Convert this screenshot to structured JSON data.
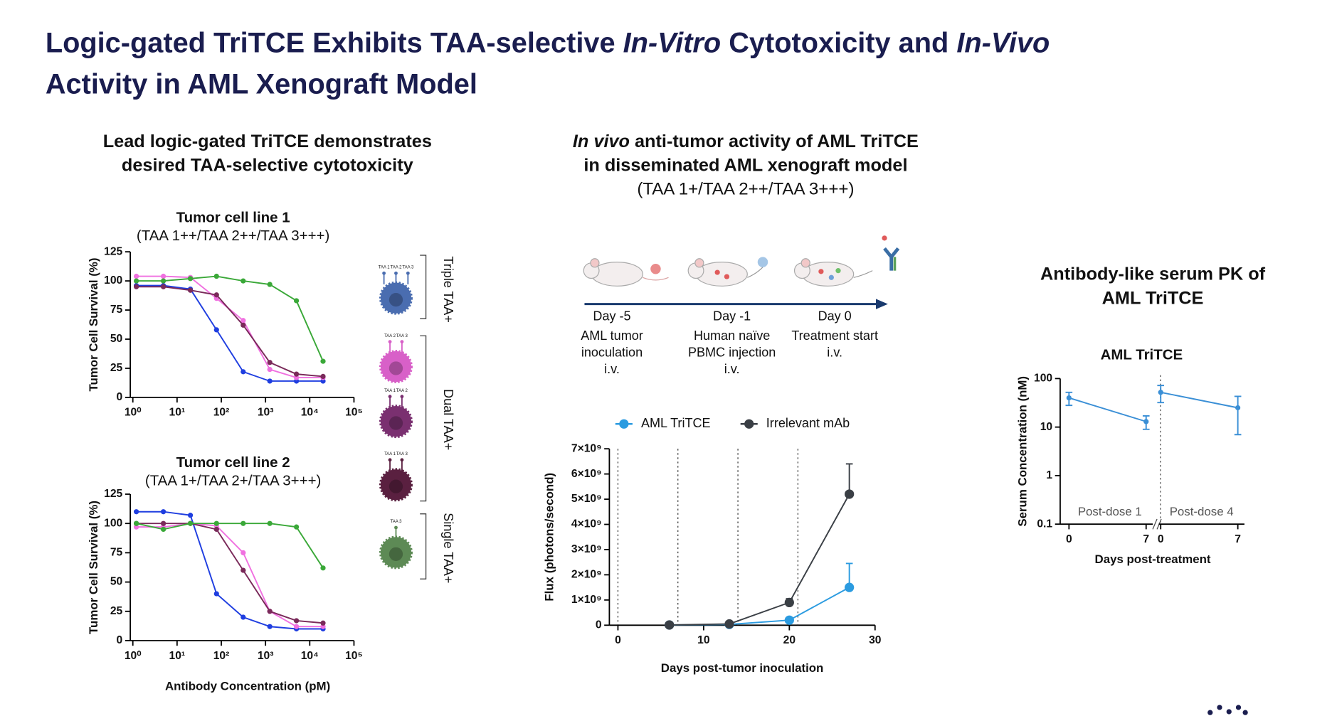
{
  "title": {
    "lines": [
      {
        "bold": true,
        "parts": [
          {
            "text": "Logic-gated TriTCE Exhibits TAA-selective ",
            "italic": false
          },
          {
            "text": "In-Vitro",
            "italic": true
          },
          {
            "text": " Cytotoxicity and ",
            "italic": false
          },
          {
            "text": "In-Vivo",
            "italic": true
          }
        ]
      },
      {
        "bold": true,
        "parts": [
          {
            "text": "Activity in AML Xenograft Model",
            "italic": false
          }
        ]
      }
    ]
  },
  "headings": [
    {
      "lines": [
        {
          "bold": true,
          "parts": [
            {
              "text": "Lead logic-gated TriTCE demonstrates",
              "italic": false
            }
          ]
        },
        {
          "bold": true,
          "parts": [
            {
              "text": "desired TAA-selective cytotoxicity",
              "italic": false
            }
          ]
        }
      ]
    },
    {
      "lines": [
        {
          "bold": true,
          "parts": [
            {
              "text": "In vivo",
              "italic": true
            },
            {
              "text": " anti-tumor activity of AML TriTCE",
              "italic": false
            }
          ]
        },
        {
          "bold": true,
          "parts": [
            {
              "text": "in disseminated AML xenograft model",
              "italic": false
            }
          ]
        },
        {
          "bold": false,
          "parts": [
            {
              "text": "(TAA 1+/TAA 2++/TAA 3+++)",
              "italic": false
            }
          ]
        }
      ]
    },
    {
      "lines": [
        {
          "bold": true,
          "parts": [
            {
              "text": "Antibody-like serum PK of",
              "italic": false
            }
          ]
        },
        {
          "bold": true,
          "parts": [
            {
              "text": "AML TriTCE",
              "italic": false
            }
          ]
        }
      ]
    }
  ],
  "cells": {
    "groups": [
      "Triple TAA+",
      "Dual TAA+",
      "Single TAA+"
    ],
    "cells": [
      {
        "color": "#4a6db0",
        "markers": [
          "TAA 1",
          "TAA 2",
          "TAA 3"
        ]
      },
      {
        "color": "#d860c8",
        "markers": [
          "TAA 2",
          "TAA 3"
        ]
      },
      {
        "color": "#7a3070",
        "markers": [
          "TAA 1",
          "TAA 2"
        ]
      },
      {
        "color": "#5a2040",
        "markers": [
          "TAA 1",
          "TAA 3"
        ]
      },
      {
        "color": "#5d8a55",
        "markers": [
          "TAA 3"
        ]
      }
    ]
  },
  "timeline": {
    "events": [
      {
        "day": "Day -5",
        "description": [
          "AML tumor",
          "inoculation",
          "i.v."
        ]
      },
      {
        "day": "Day -1",
        "description": [
          "Human naïve",
          "PBMC injection",
          "i.v."
        ]
      },
      {
        "day": "Day 0",
        "description": [
          "Treatment start",
          "i.v."
        ]
      }
    ]
  },
  "chart_data": [
    {
      "type": "line",
      "title": "Tumor cell line 1",
      "subtitle": "(TAA 1++/TAA 2++/TAA 3+++)",
      "y_label": "Tumor Cell Survival (%)",
      "xlog": true,
      "xlim": [
        1,
        100000
      ],
      "xticks": [
        {
          "value": 1,
          "label": "10⁰"
        },
        {
          "value": 10,
          "label": "10¹"
        },
        {
          "value": 100,
          "label": "10²"
        },
        {
          "value": 1000,
          "label": "10³"
        },
        {
          "value": 10000,
          "label": "10⁴"
        },
        {
          "value": 100000,
          "label": "10⁵"
        }
      ],
      "ylim": [
        0,
        125
      ],
      "yticks": [
        0,
        25,
        50,
        75,
        100,
        125
      ],
      "x": [
        1.2,
        4.9,
        20,
        78,
        313,
        1250,
        5000,
        20000
      ],
      "series": [
        {
          "color": "#1f3ee0",
          "values": [
            96,
            96,
            93,
            58,
            22,
            14,
            14,
            14
          ]
        },
        {
          "color": "#f070e0",
          "values": [
            104,
            104,
            103,
            85,
            66,
            24,
            17,
            17
          ]
        },
        {
          "color": "#7a2a5a",
          "values": [
            95,
            95,
            92,
            88,
            62,
            30,
            20,
            18
          ]
        },
        {
          "color": "#3aa838",
          "values": [
            100,
            100,
            102,
            104,
            100,
            97,
            83,
            31
          ]
        }
      ]
    },
    {
      "type": "line",
      "title": "Tumor cell line 2",
      "subtitle": "(TAA 1+/TAA 2+/TAA 3+++)",
      "y_label": "Tumor Cell Survival (%)",
      "x_label": "Antibody Concentration (pM)",
      "xlog": true,
      "xlim": [
        1,
        100000
      ],
      "xticks": [
        {
          "value": 1,
          "label": "10⁰"
        },
        {
          "value": 10,
          "label": "10¹"
        },
        {
          "value": 100,
          "label": "10²"
        },
        {
          "value": 1000,
          "label": "10³"
        },
        {
          "value": 10000,
          "label": "10⁴"
        },
        {
          "value": 100000,
          "label": "10⁵"
        }
      ],
      "ylim": [
        0,
        125
      ],
      "yticks": [
        0,
        25,
        50,
        75,
        100,
        125
      ],
      "x": [
        1.2,
        4.9,
        20,
        78,
        313,
        1250,
        5000,
        20000
      ],
      "series": [
        {
          "color": "#1f3ee0",
          "values": [
            110,
            110,
            107,
            40,
            20,
            12,
            10,
            10
          ]
        },
        {
          "color": "#f070e0",
          "values": [
            97,
            97,
            100,
            98,
            75,
            25,
            12,
            12
          ]
        },
        {
          "color": "#7a2a5a",
          "values": [
            100,
            100,
            100,
            95,
            60,
            25,
            17,
            15
          ]
        },
        {
          "color": "#3aa838",
          "values": [
            100,
            95,
            100,
            100,
            100,
            100,
            97,
            62
          ]
        }
      ]
    },
    {
      "type": "line",
      "y_label": "Flux (photons/second)",
      "x_label": "Days post-tumor inoculation",
      "xlim": [
        0,
        30
      ],
      "xticks": [
        0,
        10,
        20,
        30
      ],
      "ylim": [
        0,
        7000000000
      ],
      "yticks": [
        0,
        {
          "value": 1000000000,
          "label": "1×10⁹"
        },
        {
          "value": 2000000000,
          "label": "2×10⁹"
        },
        {
          "value": 3000000000,
          "label": "3×10⁹"
        },
        {
          "value": 4000000000,
          "label": "4×10⁹"
        },
        {
          "value": 5000000000,
          "label": "5×10⁹"
        },
        {
          "value": 6000000000,
          "label": "6×10⁹"
        },
        {
          "value": 7000000000,
          "label": "7×10⁹"
        }
      ],
      "vlines": [
        0,
        7,
        14,
        21
      ],
      "legend": "top",
      "x": [
        6,
        13,
        20,
        27
      ],
      "series": [
        {
          "name": "AML TriTCE",
          "color": "#2b9be0",
          "values": [
            10000000,
            30000000,
            200000000,
            1500000000
          ],
          "errors": [
            0,
            0,
            50000000,
            950000000
          ]
        },
        {
          "name": "Irrelevant mAb",
          "color": "#3a3f45",
          "values": [
            10000000,
            50000000,
            900000000,
            5200000000
          ],
          "errors": [
            0,
            0,
            150000000,
            1200000000
          ]
        }
      ]
    },
    {
      "type": "split-line",
      "title": "AML TriTCE",
      "y_label": "Serum Concentration (nM)",
      "x_label": "Days post-treatment",
      "ylog": true,
      "ylim": [
        0.1,
        100
      ],
      "yticks": [
        0.1,
        1,
        10,
        100
      ],
      "xlim": [
        -0.8,
        7.6
      ],
      "xticks": [
        0,
        7
      ],
      "errors_both": true,
      "series": [
        {
          "name": "Post-dose 1",
          "color": "#3a8fd6",
          "x": [
            0,
            7
          ],
          "values": [
            40,
            13
          ],
          "errors": [
            12,
            4
          ]
        },
        {
          "name": "Post-dose 4",
          "color": "#3a8fd6",
          "x": [
            0,
            7
          ],
          "values": [
            52,
            25
          ],
          "errors": [
            20,
            18
          ]
        }
      ]
    }
  ]
}
